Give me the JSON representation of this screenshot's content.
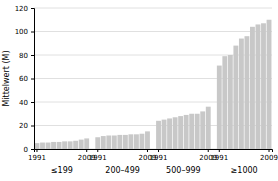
{
  "chart_data": {
    "type": "bar",
    "y_label": "Mittelwert (M)",
    "categories": [
      "1991",
      null,
      null,
      null,
      null,
      null,
      null,
      null,
      null,
      "2009",
      "1991",
      null,
      null,
      null,
      null,
      null,
      null,
      null,
      null,
      "2009",
      "1991",
      null,
      null,
      null,
      null,
      null,
      null,
      null,
      null,
      "2009",
      "1991",
      null,
      null,
      null,
      null,
      null,
      null,
      null,
      null,
      "2009"
    ],
    "values": [
      5,
      5.5,
      5.5,
      6,
      6,
      6.5,
      6.5,
      7,
      8,
      9,
      10,
      11,
      11.5,
      11.5,
      12,
      12,
      12.5,
      12.5,
      13,
      15,
      24,
      25,
      26,
      27,
      28,
      29,
      30,
      30,
      32,
      36,
      71,
      79,
      80,
      88,
      94,
      96,
      104,
      106,
      107,
      110
    ],
    "groups": [
      "≤199",
      "200–499",
      "500–999",
      "≥1000"
    ],
    "color": "#c8c8c8",
    "ylim": [
      0,
      120
    ],
    "yticks": [
      0,
      20,
      40,
      60,
      80,
      100,
      120
    ],
    "grid": true
  }
}
